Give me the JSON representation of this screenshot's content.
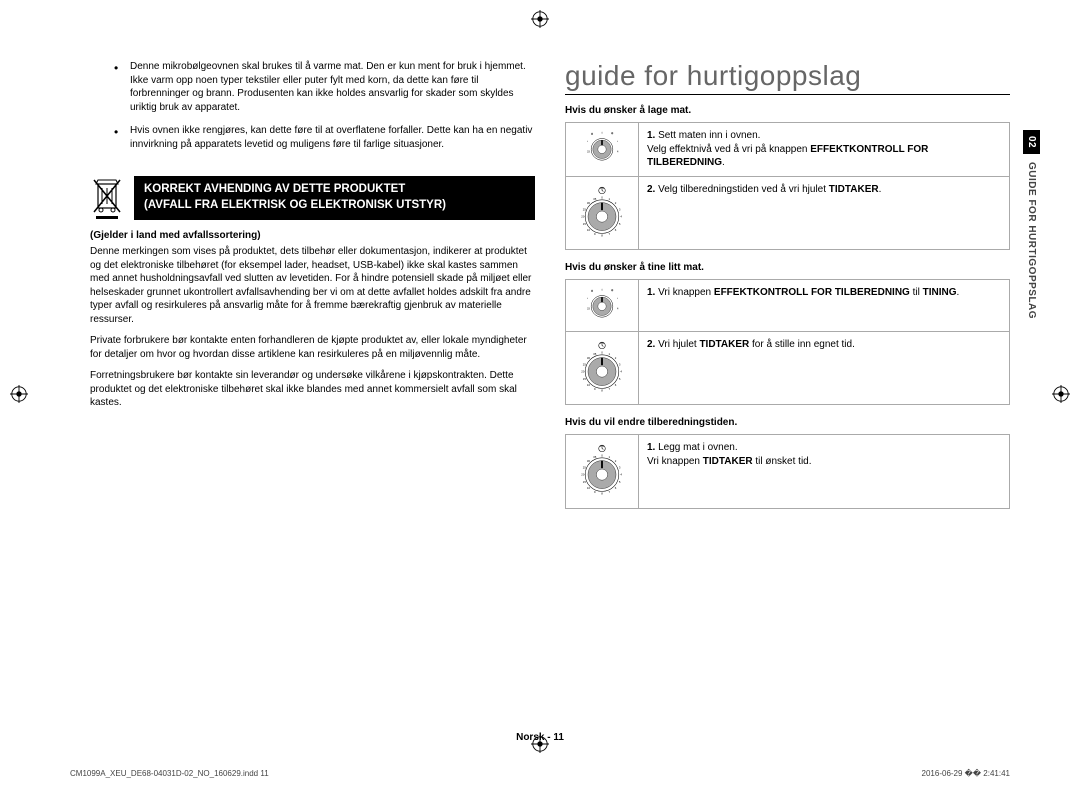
{
  "bullets": [
    "Denne mikrobølgeovnen skal brukes til å varme mat. Den er kun ment for bruk i hjemmet. Ikke varm opp noen typer tekstiler eller puter fylt med korn, da dette kan føre til forbrenninger og brann. Produsenten kan ikke holdes ansvarlig for skader som skyldes uriktig bruk av apparatet.",
    "Hvis ovnen ikke rengjøres, kan dette føre til at overflatene forfaller. Dette kan ha en negativ innvirkning på apparatets levetid og muligens føre til farlige situasjoner."
  ],
  "disposal": {
    "title_line1": "KORREKT AVHENDING AV DETTE PRODUKTET",
    "title_line2": "(AVFALL FRA ELEKTRISK OG ELEKTRONISK UTSTYR)",
    "subhead": "(Gjelder i land med avfallssortering)",
    "para1": "Denne merkingen som vises på produktet, dets tilbehør eller dokumentasjon, indikerer at produktet og det elektroniske tilbehøret (for eksempel lader, headset, USB-kabel) ikke skal kastes sammen med annet husholdningsavfall ved slutten av levetiden. For å hindre potensiell skade på miljøet eller helseskader grunnet ukontrollert avfallsavhending ber vi om at dette avfallet holdes adskilt fra andre typer avfall og resirkuleres på ansvarlig måte for å fremme bærekraftig gjenbruk av materielle ressurser.",
    "para2": "Private forbrukere bør kontakte enten forhandleren de kjøpte produktet av, eller lokale myndigheter for detaljer om hvor og hvordan disse artiklene kan resirkuleres på en miljøvennlig måte.",
    "para3": "Forretningsbrukere bør kontakte sin leverandør og undersøke vilkårene i kjøpskontrakten. Dette produktet og det elektroniske tilbehøret skal ikke blandes med annet kommersielt avfall som skal kastes."
  },
  "guide": {
    "title": "guide for hurtigoppslag",
    "sections": [
      {
        "heading": "Hvis du ønsker å lage mat.",
        "rows": [
          {
            "dial": "power",
            "steps": [
              {
                "n": "1.",
                "text": "Sett maten inn i ovnen."
              },
              {
                "plain": "Velg effektnivå ved å vri på knappen ",
                "bold": "EFFEKTKONTROLL FOR TILBEREDNING",
                "suffix": "."
              }
            ]
          },
          {
            "dial": "timer",
            "steps": [
              {
                "n": "2.",
                "text": "Velg tilberedningstiden ved å vri hjulet ",
                "bold": "TIDTAKER",
                "suffix": "."
              }
            ]
          }
        ]
      },
      {
        "heading": "Hvis du ønsker å tine litt mat.",
        "rows": [
          {
            "dial": "power",
            "steps": [
              {
                "n": "1.",
                "text": "Vri knappen ",
                "bold": "EFFEKTKONTROLL FOR TILBEREDNING",
                "mid": " til ",
                "bold2": "TINING",
                "suffix": "."
              }
            ]
          },
          {
            "dial": "timer",
            "steps": [
              {
                "n": "2.",
                "text": "Vri hjulet ",
                "bold": "TIDTAKER",
                "mid": " for å stille inn egnet tid.",
                "suffix": ""
              }
            ]
          }
        ]
      },
      {
        "heading": "Hvis du vil endre tilberedningstiden.",
        "rows": [
          {
            "dial": "timer",
            "steps": [
              {
                "n": "1.",
                "text": "Legg mat i ovnen."
              },
              {
                "plain": "Vri knappen ",
                "bold": "TIDTAKER",
                "mid": " til ønsket tid.",
                "suffix": ""
              }
            ]
          }
        ]
      }
    ]
  },
  "side_tab": {
    "num": "02",
    "text": "GUIDE FOR HURTIGOPPSLAG"
  },
  "page_label": "Norsk - 11",
  "footer": {
    "left": "CM1099A_XEU_DE68-04031D-02_NO_160629.indd   11",
    "right": "2016-06-29   �� 2:41:41"
  },
  "dial_timer_ticks": [
    "0",
    "1",
    "2",
    "3",
    "4",
    "5",
    "6",
    "7",
    "8",
    "9",
    "10",
    "15",
    "20",
    "25",
    "30",
    "35"
  ],
  "colors": {
    "text": "#000000",
    "border": "#aaaaaa",
    "title": "#666666",
    "bg": "#ffffff"
  }
}
